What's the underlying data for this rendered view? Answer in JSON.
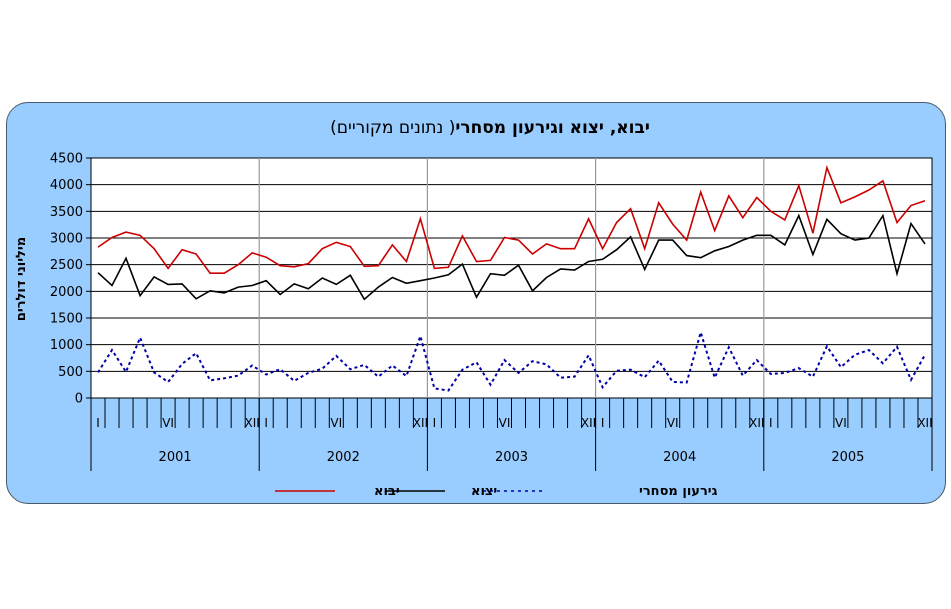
{
  "chart_data": {
    "type": "line",
    "title": "יבוא, יצוא וגירעון מסחרי",
    "subtitle": "( נתונים מקוריים)",
    "ylabel": "מיליוני דולרים",
    "xlabel": "",
    "ylim": [
      0,
      4500
    ],
    "yticks": [
      "0",
      "500",
      "1000",
      "1500",
      "2000",
      "2500",
      "3000",
      "3500",
      "4000",
      "4500"
    ],
    "ytick_values": [
      0,
      500,
      1000,
      1500,
      2000,
      2500,
      3000,
      3500,
      4000,
      4500
    ],
    "years": [
      "2001",
      "2002",
      "2003",
      "2004",
      "2005"
    ],
    "month_labels": [
      "I",
      "VI",
      "XII"
    ],
    "grid": true,
    "legend_position": "bottom",
    "x": [
      "2001-01",
      "2001-02",
      "2001-03",
      "2001-04",
      "2001-05",
      "2001-06",
      "2001-07",
      "2001-08",
      "2001-09",
      "2001-10",
      "2001-11",
      "2001-12",
      "2002-01",
      "2002-02",
      "2002-03",
      "2002-04",
      "2002-05",
      "2002-06",
      "2002-07",
      "2002-08",
      "2002-09",
      "2002-10",
      "2002-11",
      "2002-12",
      "2003-01",
      "2003-02",
      "2003-03",
      "2003-04",
      "2003-05",
      "2003-06",
      "2003-07",
      "2003-08",
      "2003-09",
      "2003-10",
      "2003-11",
      "2003-12",
      "2004-01",
      "2004-02",
      "2004-03",
      "2004-04",
      "2004-05",
      "2004-06",
      "2004-07",
      "2004-08",
      "2004-09",
      "2004-10",
      "2004-11",
      "2004-12",
      "2005-01",
      "2005-02",
      "2005-03",
      "2005-04",
      "2005-05",
      "2005-06",
      "2005-07",
      "2005-08",
      "2005-09",
      "2005-10",
      "2005-11",
      "2005-12"
    ],
    "series": [
      {
        "name": "יבוא",
        "color": "#cc0000",
        "style": "solid",
        "values": [
          2830,
          3010,
          3110,
          3050,
          2800,
          2430,
          2780,
          2700,
          2340,
          2340,
          2500,
          2720,
          2640,
          2480,
          2460,
          2520,
          2800,
          2920,
          2840,
          2470,
          2480,
          2870,
          2560,
          3360,
          2430,
          2450,
          3040,
          2560,
          2580,
          3010,
          2960,
          2700,
          2890,
          2800,
          2800,
          3360,
          2800,
          3290,
          3550,
          2800,
          3660,
          3260,
          2960,
          3860,
          3140,
          3790,
          3380,
          3760,
          3500,
          3340,
          3980,
          3090,
          4320,
          3660,
          3770,
          3900,
          4070,
          3290,
          3610,
          3700
        ]
      },
      {
        "name": "יצוא",
        "color": "#000000",
        "style": "solid",
        "values": [
          2350,
          2110,
          2620,
          1920,
          2270,
          2130,
          2140,
          1860,
          2010,
          1970,
          2080,
          2110,
          2200,
          1940,
          2140,
          2050,
          2250,
          2130,
          2300,
          1850,
          2080,
          2260,
          2150,
          2200,
          2250,
          2310,
          2510,
          1890,
          2330,
          2300,
          2490,
          2010,
          2260,
          2420,
          2400,
          2560,
          2600,
          2780,
          3020,
          2410,
          2960,
          2960,
          2670,
          2630,
          2760,
          2840,
          2960,
          3050,
          3050,
          2870,
          3420,
          2690,
          3350,
          3080,
          2960,
          3000,
          3420,
          2330,
          3270,
          2890
        ]
      },
      {
        "name": "גירעון מסחרי",
        "color": "#0000aa",
        "style": "dashed",
        "values": [
          480,
          900,
          490,
          1130,
          480,
          300,
          640,
          840,
          330,
          370,
          420,
          610,
          440,
          540,
          320,
          470,
          550,
          790,
          540,
          620,
          400,
          610,
          410,
          1160,
          180,
          140,
          530,
          670,
          250,
          710,
          470,
          690,
          630,
          380,
          400,
          800,
          200,
          510,
          530,
          390,
          700,
          300,
          290,
          1230,
          380,
          950,
          420,
          710,
          450,
          470,
          560,
          400,
          970,
          580,
          810,
          900,
          650,
          960,
          340,
          810
        ]
      }
    ]
  }
}
